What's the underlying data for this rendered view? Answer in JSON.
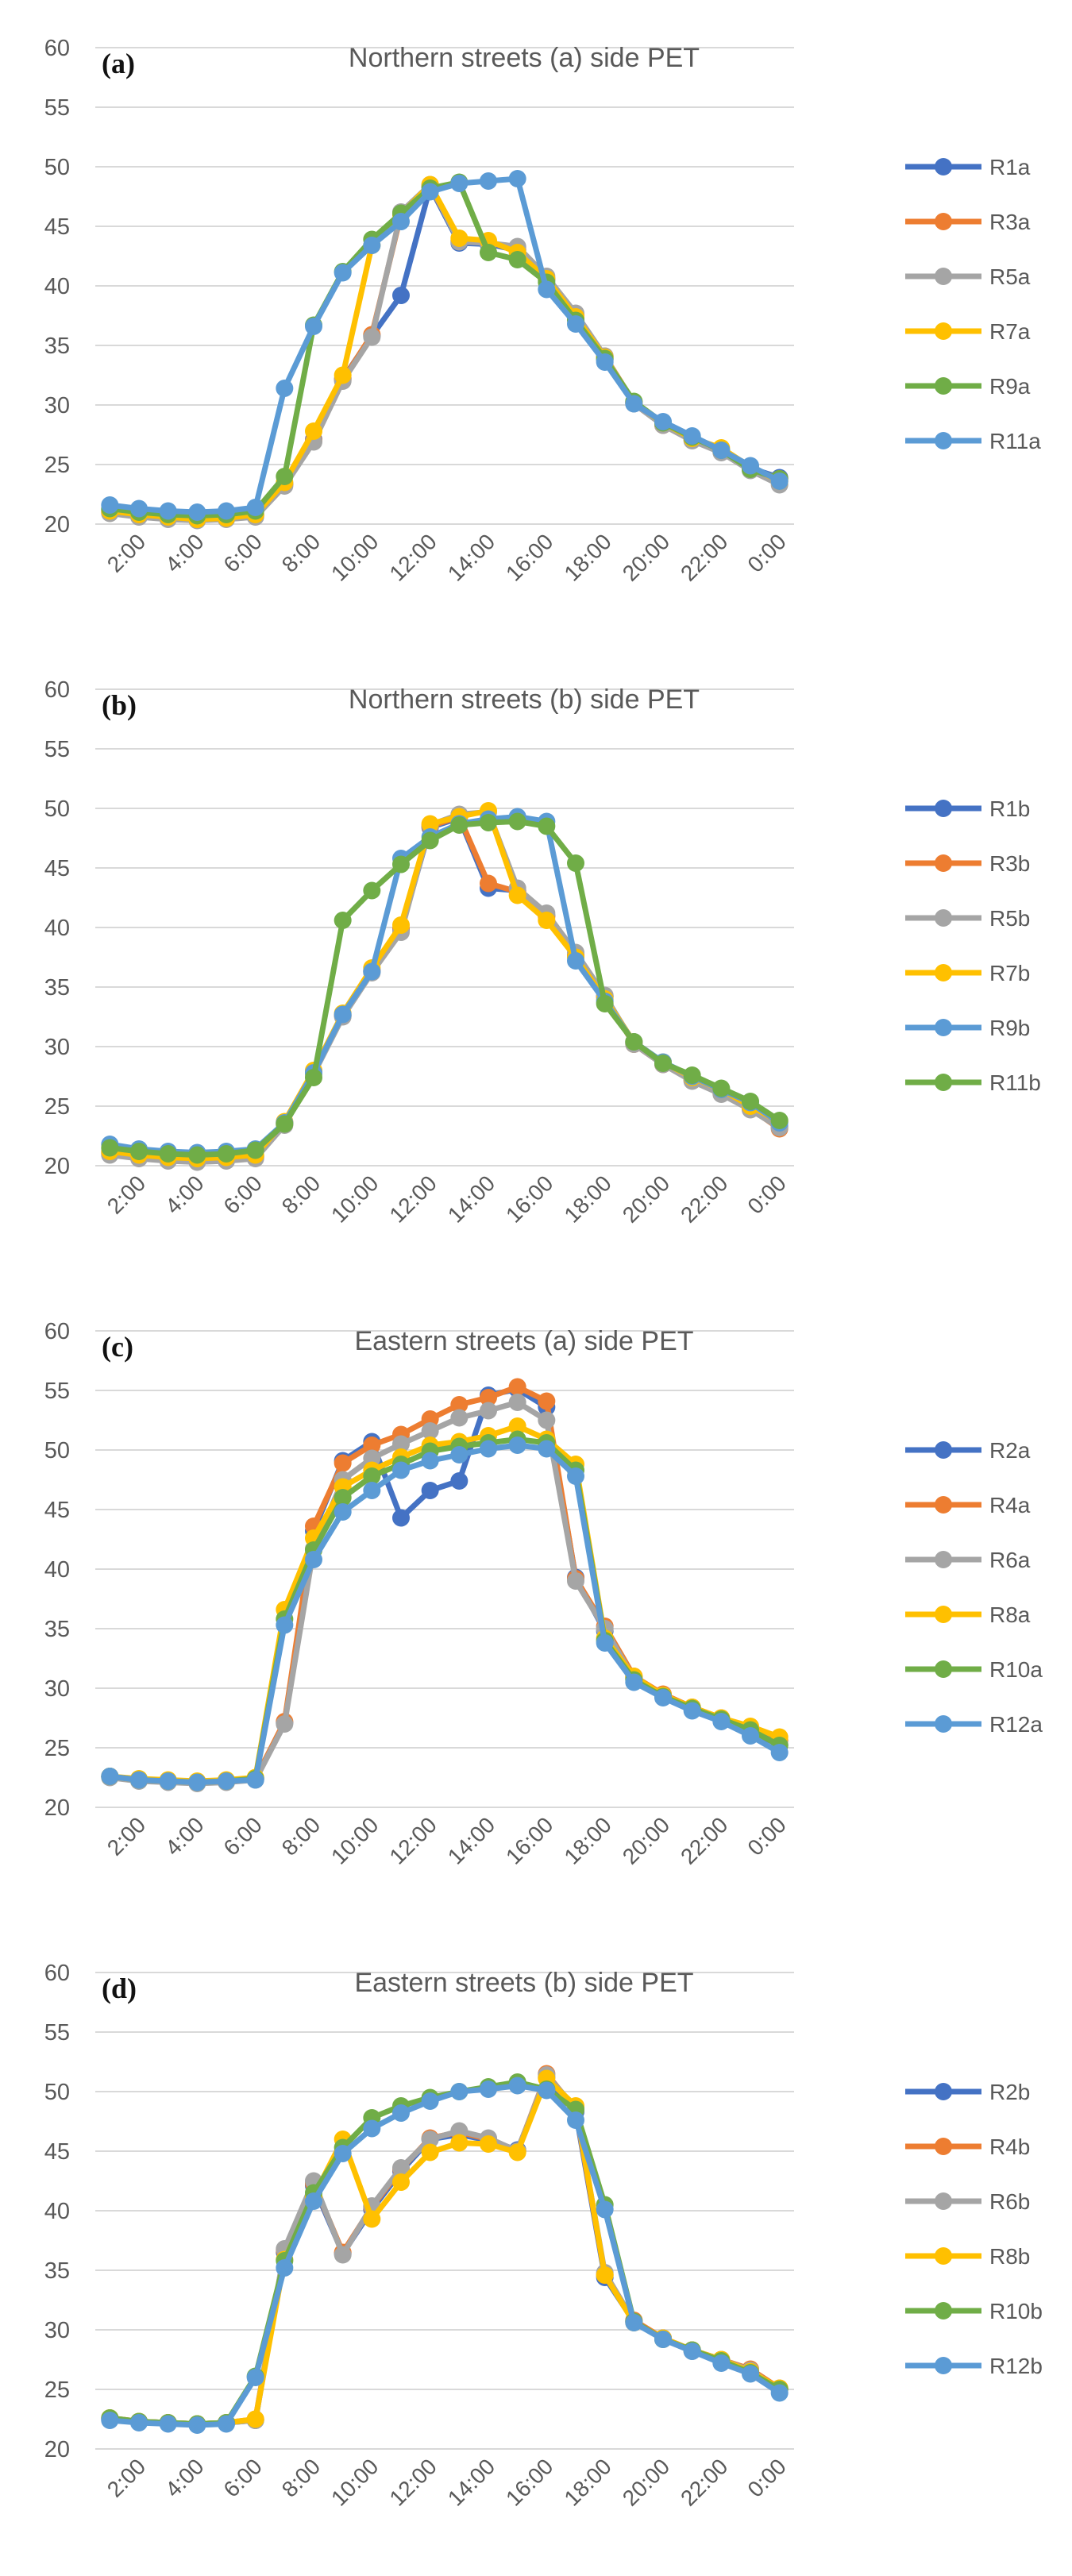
{
  "colors": {
    "blue": "#4472C4",
    "orange": "#ED7D31",
    "gray": "#A5A5A5",
    "yellow": "#FFC000",
    "green": "#70AD47",
    "lightblue": "#5B9BD5",
    "grid": "#D9D9D9",
    "text": "#595959"
  },
  "chart_data": [
    {
      "id": "a",
      "type": "line",
      "panel_label": "(a)",
      "title": "Northern  streets (a) side PET",
      "ylim": [
        20,
        60
      ],
      "yticks": [
        20,
        25,
        30,
        35,
        40,
        45,
        50,
        55,
        60
      ],
      "x": [
        "1:00",
        "2:00",
        "3:00",
        "4:00",
        "5:00",
        "6:00",
        "7:00",
        "8:00",
        "9:00",
        "10:00",
        "11:00",
        "12:00",
        "13:00",
        "14:00",
        "15:00",
        "16:00",
        "17:00",
        "18:00",
        "19:00",
        "20:00",
        "21:00",
        "22:00",
        "23:00",
        "0:00"
      ],
      "xtick_labels": [
        "2:00",
        "4:00",
        "6:00",
        "8:00",
        "10:00",
        "12:00",
        "14:00",
        "16:00",
        "18:00",
        "20:00",
        "22:00",
        "0:00"
      ],
      "grid": true,
      "legend_position": "right",
      "series": [
        {
          "name": "R1a",
          "color": "#4472C4",
          "values": [
            21.2,
            20.8,
            20.6,
            20.5,
            20.6,
            20.8,
            23.4,
            27.1,
            32.2,
            35.8,
            39.2,
            48.3,
            43.6,
            43.5,
            43.0,
            40.5,
            37.3,
            33.8,
            30.2,
            28.4,
            27.2,
            26.1,
            24.7,
            23.9
          ]
        },
        {
          "name": "R3a",
          "color": "#ED7D31",
          "values": [
            21.0,
            20.7,
            20.5,
            20.4,
            20.5,
            20.7,
            23.3,
            27.0,
            32.1,
            35.9,
            46.0,
            48.4,
            43.8,
            43.6,
            43.2,
            40.6,
            37.5,
            34.1,
            30.2,
            28.3,
            27.1,
            26.1,
            24.6,
            23.8
          ]
        },
        {
          "name": "R5a",
          "color": "#A5A5A5",
          "values": [
            20.9,
            20.6,
            20.4,
            20.3,
            20.4,
            20.6,
            23.2,
            26.9,
            32.0,
            35.7,
            46.2,
            48.5,
            43.7,
            43.6,
            43.3,
            40.8,
            37.7,
            34.1,
            30.1,
            28.3,
            27.0,
            26.0,
            24.5,
            23.3
          ]
        },
        {
          "name": "R7a",
          "color": "#FFC000",
          "values": [
            21.1,
            20.8,
            20.6,
            20.4,
            20.5,
            20.8,
            23.5,
            27.8,
            32.5,
            43.4,
            46.0,
            48.5,
            44.0,
            43.8,
            42.8,
            40.6,
            37.4,
            34.0,
            30.2,
            28.5,
            27.2,
            26.4,
            24.8,
            23.6
          ]
        },
        {
          "name": "R9a",
          "color": "#70AD47",
          "values": [
            21.3,
            21.0,
            20.8,
            20.7,
            20.8,
            21.1,
            24.0,
            36.7,
            41.2,
            43.9,
            46.1,
            48.2,
            48.7,
            42.8,
            42.2,
            40.3,
            37.1,
            33.9,
            30.3,
            28.5,
            27.3,
            26.2,
            24.6,
            23.8
          ]
        },
        {
          "name": "R11a",
          "color": "#5B9BD5",
          "values": [
            21.6,
            21.3,
            21.1,
            21.0,
            21.1,
            21.4,
            31.4,
            36.6,
            41.1,
            43.4,
            45.4,
            47.9,
            48.6,
            48.8,
            49.0,
            39.7,
            36.8,
            33.6,
            30.1,
            28.6,
            27.4,
            26.2,
            24.9,
            23.6
          ]
        }
      ]
    },
    {
      "id": "b",
      "type": "line",
      "panel_label": "(b)",
      "title": "Northern  streets (b) side PET",
      "ylim": [
        20,
        60
      ],
      "yticks": [
        20,
        25,
        30,
        35,
        40,
        45,
        50,
        55,
        60
      ],
      "x": [
        "1:00",
        "2:00",
        "3:00",
        "4:00",
        "5:00",
        "6:00",
        "7:00",
        "8:00",
        "9:00",
        "10:00",
        "11:00",
        "12:00",
        "13:00",
        "14:00",
        "15:00",
        "16:00",
        "17:00",
        "18:00",
        "19:00",
        "20:00",
        "21:00",
        "22:00",
        "23:00",
        "0:00"
      ],
      "xtick_labels": [
        "2:00",
        "4:00",
        "6:00",
        "8:00",
        "10:00",
        "12:00",
        "14:00",
        "16:00",
        "18:00",
        "20:00",
        "22:00",
        "0:00"
      ],
      "grid": true,
      "legend_position": "right",
      "series": [
        {
          "name": "R1b",
          "color": "#4472C4",
          "values": [
            21.1,
            20.8,
            20.6,
            20.5,
            20.6,
            20.8,
            23.6,
            27.9,
            32.6,
            36.3,
            39.8,
            48.4,
            49.2,
            43.3,
            43.1,
            41.0,
            37.6,
            34.2,
            30.3,
            28.6,
            27.3,
            26.2,
            25.0,
            23.3
          ]
        },
        {
          "name": "R3b",
          "color": "#ED7D31",
          "values": [
            21.0,
            20.7,
            20.5,
            20.4,
            20.5,
            20.7,
            23.5,
            27.8,
            32.6,
            36.4,
            39.9,
            48.5,
            49.3,
            43.7,
            43.0,
            40.9,
            37.7,
            34.2,
            30.2,
            28.5,
            27.2,
            26.1,
            24.8,
            23.1
          ]
        },
        {
          "name": "R5b",
          "color": "#A5A5A5",
          "values": [
            20.9,
            20.6,
            20.4,
            20.3,
            20.4,
            20.6,
            23.4,
            27.7,
            32.5,
            36.2,
            39.6,
            48.6,
            49.5,
            49.7,
            43.3,
            41.2,
            37.9,
            34.3,
            30.2,
            28.5,
            27.1,
            26.0,
            24.7,
            23.2
          ]
        },
        {
          "name": "R7b",
          "color": "#FFC000",
          "values": [
            21.2,
            20.9,
            20.7,
            20.6,
            20.7,
            20.9,
            23.7,
            28.0,
            32.8,
            36.6,
            40.2,
            48.7,
            49.3,
            49.8,
            42.7,
            40.6,
            37.5,
            34.0,
            30.4,
            28.7,
            27.4,
            26.4,
            25.0,
            23.7
          ]
        },
        {
          "name": "R9b",
          "color": "#5B9BD5",
          "values": [
            21.8,
            21.4,
            21.2,
            21.1,
            21.2,
            21.4,
            23.6,
            27.8,
            32.7,
            36.3,
            45.8,
            47.6,
            48.7,
            49.1,
            49.3,
            48.9,
            37.2,
            33.8,
            30.4,
            28.7,
            27.5,
            26.4,
            25.3,
            23.6
          ]
        },
        {
          "name": "R11b",
          "color": "#70AD47",
          "values": [
            21.5,
            21.2,
            21.0,
            20.9,
            21.0,
            21.3,
            23.5,
            27.4,
            40.6,
            43.1,
            45.3,
            47.3,
            48.6,
            48.8,
            48.9,
            48.5,
            45.4,
            33.6,
            30.4,
            28.6,
            27.6,
            26.5,
            25.4,
            23.8
          ]
        }
      ]
    },
    {
      "id": "c",
      "type": "line",
      "panel_label": "(c)",
      "title": "Eastern  streets (a) side PET",
      "ylim": [
        20,
        60
      ],
      "yticks": [
        20,
        25,
        30,
        35,
        40,
        45,
        50,
        55,
        60
      ],
      "x": [
        "1:00",
        "2:00",
        "3:00",
        "4:00",
        "5:00",
        "6:00",
        "7:00",
        "8:00",
        "9:00",
        "10:00",
        "11:00",
        "12:00",
        "13:00",
        "14:00",
        "15:00",
        "16:00",
        "17:00",
        "18:00",
        "19:00",
        "20:00",
        "21:00",
        "22:00",
        "23:00",
        "0:00"
      ],
      "xtick_labels": [
        "2:00",
        "4:00",
        "6:00",
        "8:00",
        "10:00",
        "12:00",
        "14:00",
        "16:00",
        "18:00",
        "20:00",
        "22:00",
        "0:00"
      ],
      "grid": true,
      "legend_position": "right",
      "series": [
        {
          "name": "R2a",
          "color": "#4472C4",
          "values": [
            22.6,
            22.3,
            22.2,
            22.1,
            22.2,
            22.4,
            27.1,
            43.2,
            49.1,
            50.7,
            44.3,
            46.6,
            47.4,
            54.6,
            55.1,
            53.6,
            39.3,
            34.8,
            30.9,
            29.4,
            28.3,
            27.4,
            26.4,
            25.2
          ]
        },
        {
          "name": "R4a",
          "color": "#ED7D31",
          "values": [
            22.6,
            22.3,
            22.2,
            22.1,
            22.2,
            22.4,
            27.2,
            43.6,
            48.9,
            50.4,
            51.3,
            52.6,
            53.8,
            54.4,
            55.3,
            54.1,
            39.2,
            35.2,
            31.0,
            29.5,
            28.4,
            27.5,
            26.6,
            25.6
          ]
        },
        {
          "name": "R6a",
          "color": "#A5A5A5",
          "values": [
            22.5,
            22.2,
            22.1,
            22.0,
            22.1,
            22.3,
            27.0,
            41.7,
            47.5,
            49.3,
            50.5,
            51.6,
            52.7,
            53.3,
            54.0,
            52.5,
            39.0,
            35.0,
            30.8,
            29.4,
            28.3,
            27.4,
            26.4,
            25.3
          ]
        },
        {
          "name": "R8a",
          "color": "#FFC000",
          "values": [
            22.6,
            22.4,
            22.3,
            22.2,
            22.3,
            22.5,
            36.6,
            42.6,
            46.9,
            48.3,
            49.4,
            50.4,
            50.7,
            51.2,
            52.0,
            50.9,
            48.8,
            34.2,
            31.0,
            29.4,
            28.4,
            27.5,
            26.8,
            25.9
          ]
        },
        {
          "name": "R10a",
          "color": "#70AD47",
          "values": [
            22.6,
            22.3,
            22.2,
            22.1,
            22.2,
            22.4,
            35.8,
            41.6,
            46.0,
            47.8,
            48.8,
            49.9,
            50.3,
            50.6,
            50.9,
            50.6,
            48.3,
            34.0,
            30.7,
            29.3,
            28.3,
            27.4,
            26.5,
            25.2
          ]
        },
        {
          "name": "R12a",
          "color": "#5B9BD5",
          "values": [
            22.6,
            22.3,
            22.2,
            22.1,
            22.2,
            22.3,
            35.3,
            40.8,
            44.8,
            46.6,
            48.3,
            49.1,
            49.6,
            50.1,
            50.4,
            50.1,
            47.8,
            33.8,
            30.5,
            29.2,
            28.1,
            27.2,
            26.0,
            24.6
          ]
        }
      ]
    },
    {
      "id": "d",
      "type": "line",
      "panel_label": "(d)",
      "title": "Eastern  streets (b) side PET",
      "ylim": [
        20,
        60
      ],
      "yticks": [
        20,
        25,
        30,
        35,
        40,
        45,
        50,
        55,
        60
      ],
      "x": [
        "1:00",
        "2:00",
        "3:00",
        "4:00",
        "5:00",
        "6:00",
        "7:00",
        "8:00",
        "9:00",
        "10:00",
        "11:00",
        "12:00",
        "13:00",
        "14:00",
        "15:00",
        "16:00",
        "17:00",
        "18:00",
        "19:00",
        "20:00",
        "21:00",
        "22:00",
        "23:00",
        "0:00"
      ],
      "xtick_labels": [
        "2:00",
        "4:00",
        "6:00",
        "8:00",
        "10:00",
        "12:00",
        "14:00",
        "16:00",
        "18:00",
        "20:00",
        "22:00",
        "0:00"
      ],
      "grid": true,
      "legend_position": "right",
      "series": [
        {
          "name": "R2b",
          "color": "#4472C4",
          "values": [
            22.5,
            22.3,
            22.2,
            22.1,
            22.2,
            22.4,
            36.5,
            42.1,
            36.4,
            40.1,
            43.3,
            46.0,
            46.4,
            45.9,
            45.1,
            51.2,
            48.3,
            34.4,
            30.7,
            29.3,
            28.3,
            27.5,
            26.6,
            25.0
          ]
        },
        {
          "name": "R4b",
          "color": "#ED7D31",
          "values": [
            22.6,
            22.3,
            22.2,
            22.1,
            22.2,
            22.5,
            36.7,
            42.3,
            36.5,
            40.3,
            43.5,
            46.1,
            46.6,
            46.0,
            45.0,
            51.5,
            48.5,
            34.6,
            30.8,
            29.3,
            28.3,
            27.5,
            26.7,
            25.1
          ]
        },
        {
          "name": "R6b",
          "color": "#A5A5A5",
          "values": [
            22.5,
            22.3,
            22.2,
            22.1,
            22.2,
            22.4,
            36.8,
            42.5,
            36.3,
            40.4,
            43.6,
            46.0,
            46.7,
            46.1,
            45.0,
            51.4,
            48.6,
            34.8,
            30.7,
            29.2,
            28.2,
            27.5,
            26.6,
            25.0
          ]
        },
        {
          "name": "R8b",
          "color": "#FFC000",
          "values": [
            22.6,
            22.3,
            22.2,
            22.1,
            22.2,
            22.5,
            35.9,
            41.2,
            46.0,
            39.3,
            42.4,
            44.9,
            45.7,
            45.6,
            44.9,
            51.1,
            48.8,
            34.6,
            30.6,
            29.3,
            28.3,
            27.5,
            26.5,
            25.1
          ]
        },
        {
          "name": "R10b",
          "color": "#70AD47",
          "values": [
            22.6,
            22.3,
            22.2,
            22.1,
            22.2,
            26.1,
            35.8,
            41.5,
            45.3,
            47.8,
            48.8,
            49.5,
            50.0,
            50.4,
            50.8,
            50.2,
            48.5,
            40.5,
            30.7,
            29.2,
            28.3,
            27.4,
            26.4,
            25.0
          ]
        },
        {
          "name": "R12b",
          "color": "#5B9BD5",
          "values": [
            22.4,
            22.2,
            22.1,
            22.0,
            22.1,
            26.0,
            35.2,
            40.8,
            44.8,
            46.9,
            48.2,
            49.2,
            50.0,
            50.2,
            50.5,
            50.1,
            47.6,
            40.1,
            30.6,
            29.2,
            28.2,
            27.2,
            26.3,
            24.7
          ]
        }
      ]
    }
  ]
}
